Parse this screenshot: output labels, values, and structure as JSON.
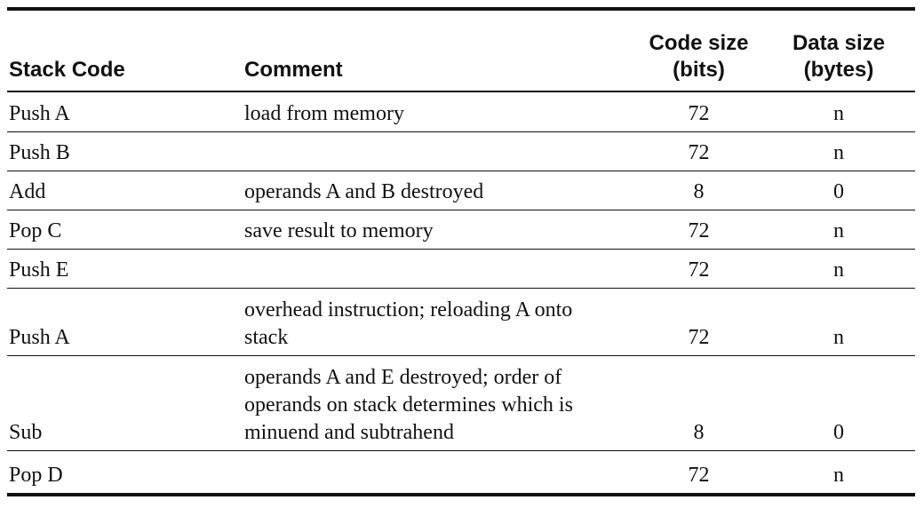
{
  "table": {
    "headers": {
      "stack_code": "Stack Code",
      "comment": "Comment",
      "code_size_line1": "Code size",
      "code_size_line2": "(bits)",
      "data_size_line1": "Data size",
      "data_size_line2": "(bytes)"
    },
    "rows": [
      {
        "stack_code": "Push A",
        "comment_lines": [
          "load from memory"
        ],
        "code_size": "72",
        "data_size": "n"
      },
      {
        "stack_code": "Push B",
        "comment_lines": [
          ""
        ],
        "code_size": "72",
        "data_size": "n"
      },
      {
        "stack_code": "Add",
        "comment_lines": [
          "operands A and B destroyed"
        ],
        "code_size": "8",
        "data_size": "0"
      },
      {
        "stack_code": "Pop C",
        "comment_lines": [
          "save result to memory"
        ],
        "code_size": "72",
        "data_size": "n"
      },
      {
        "stack_code": "Push E",
        "comment_lines": [
          ""
        ],
        "code_size": "72",
        "data_size": "n"
      },
      {
        "stack_code": "Push A",
        "comment_lines": [
          "overhead instruction; reloading A onto",
          "stack"
        ],
        "code_size": "72",
        "data_size": "n"
      },
      {
        "stack_code": "Sub",
        "comment_lines": [
          "operands A and E destroyed; order of",
          "operands on stack determines which is",
          "minuend and subtrahend"
        ],
        "code_size": "8",
        "data_size": "0"
      },
      {
        "stack_code": "Pop D",
        "comment_lines": [
          ""
        ],
        "code_size": "72",
        "data_size": "n"
      }
    ]
  }
}
